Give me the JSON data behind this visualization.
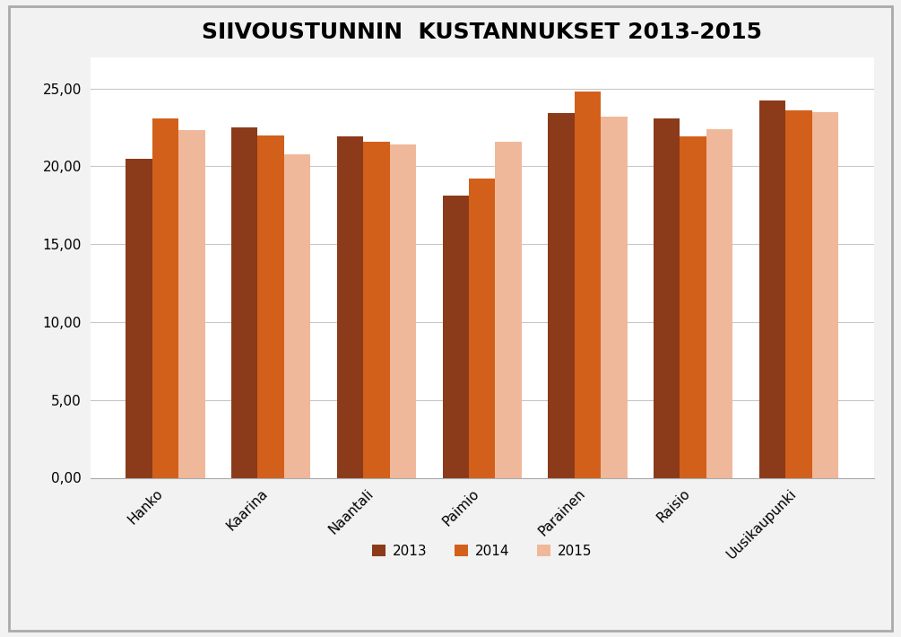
{
  "title": "SIIVOUSTUNNIN  KUSTANNUKSET 2013-2015",
  "categories": [
    "Hanko",
    "Kaarina",
    "Naantali",
    "Paimio",
    "Parainen",
    "Raisio",
    "Uusikaupunki"
  ],
  "series": {
    "2013": [
      20.5,
      22.5,
      21.9,
      18.1,
      23.4,
      23.1,
      24.2
    ],
    "2014": [
      23.1,
      22.0,
      21.6,
      19.2,
      24.8,
      21.9,
      23.6
    ],
    "2015": [
      22.3,
      20.8,
      21.4,
      21.6,
      23.2,
      22.4,
      23.5
    ]
  },
  "colors": {
    "2013": "#8B3A1A",
    "2014": "#D2601A",
    "2015": "#F0B89A"
  },
  "ylim": [
    0,
    27
  ],
  "yticks": [
    0,
    5,
    10,
    15,
    20,
    25
  ],
  "ytick_labels": [
    "0,00",
    "5,00",
    "10,00",
    "15,00",
    "20,00",
    "25,00"
  ],
  "background_color": "#F2F2F2",
  "plot_bg_color": "#FFFFFF",
  "grid_color": "#C8C8C8",
  "bar_width": 0.25,
  "title_fontsize": 18,
  "tick_fontsize": 11,
  "legend_fontsize": 11
}
